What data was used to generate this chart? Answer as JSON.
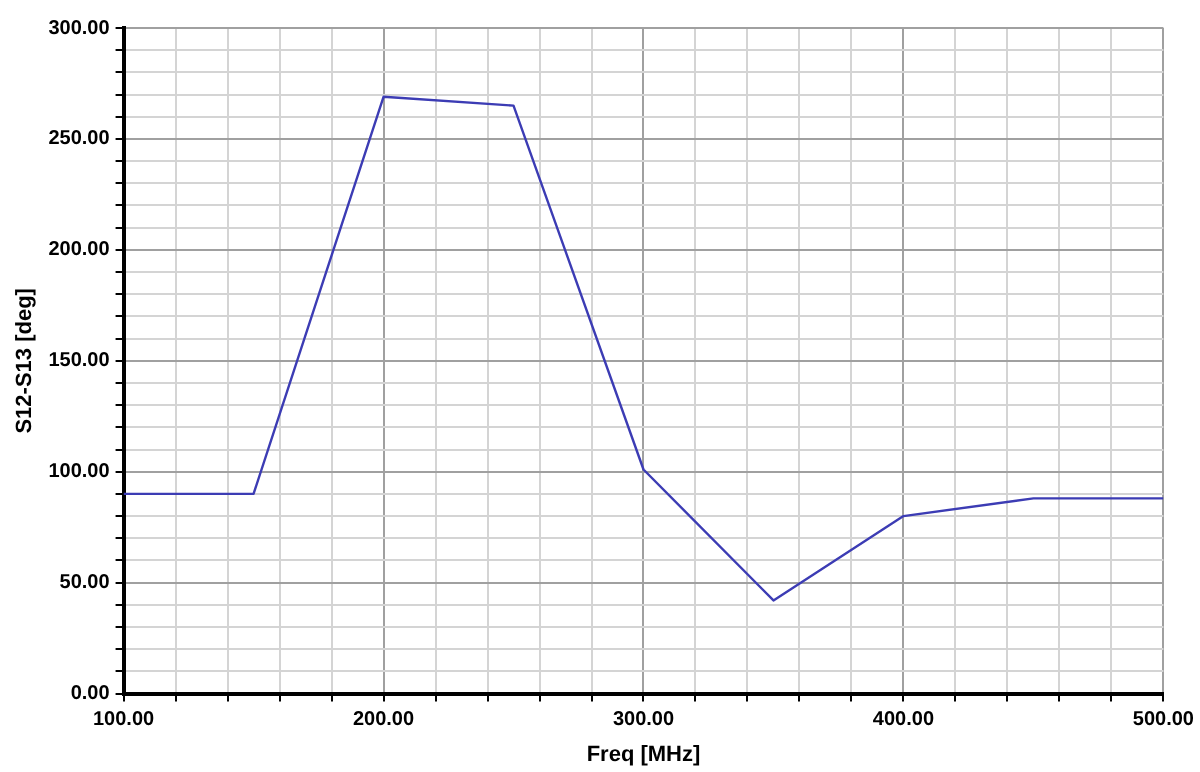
{
  "chart_data": {
    "type": "line",
    "xlabel": "Freq [MHz]",
    "ylabel": "S12-S13 [deg]",
    "series": [
      {
        "color": "#3c3cb4",
        "x": [
          100,
          150,
          200,
          250,
          300,
          350,
          400,
          450,
          500
        ],
        "values": [
          90,
          90,
          269,
          265,
          101,
          42,
          80,
          88,
          88
        ]
      }
    ],
    "xlim": [
      100,
      500
    ],
    "xticks": [
      {
        "value": 100,
        "label": "100.00"
      },
      {
        "value": 120,
        "label": null
      },
      {
        "value": 140,
        "label": null
      },
      {
        "value": 160,
        "label": null
      },
      {
        "value": 180,
        "label": null
      },
      {
        "value": 200,
        "label": "200.00"
      },
      {
        "value": 220,
        "label": null
      },
      {
        "value": 240,
        "label": null
      },
      {
        "value": 260,
        "label": null
      },
      {
        "value": 280,
        "label": null
      },
      {
        "value": 300,
        "label": "300.00"
      },
      {
        "value": 320,
        "label": null
      },
      {
        "value": 340,
        "label": null
      },
      {
        "value": 360,
        "label": null
      },
      {
        "value": 380,
        "label": null
      },
      {
        "value": 400,
        "label": "400.00"
      },
      {
        "value": 420,
        "label": null
      },
      {
        "value": 440,
        "label": null
      },
      {
        "value": 460,
        "label": null
      },
      {
        "value": 480,
        "label": null
      },
      {
        "value": 500,
        "label": "500.00"
      }
    ],
    "ylim": [
      0,
      300
    ],
    "yticks": [
      {
        "value": 0,
        "label": "0.00"
      },
      {
        "value": 10,
        "label": null
      },
      {
        "value": 20,
        "label": null
      },
      {
        "value": 30,
        "label": null
      },
      {
        "value": 40,
        "label": null
      },
      {
        "value": 50,
        "label": "50.00"
      },
      {
        "value": 60,
        "label": null
      },
      {
        "value": 70,
        "label": null
      },
      {
        "value": 80,
        "label": null
      },
      {
        "value": 90,
        "label": null
      },
      {
        "value": 100,
        "label": "100.00"
      },
      {
        "value": 110,
        "label": null
      },
      {
        "value": 120,
        "label": null
      },
      {
        "value": 130,
        "label": null
      },
      {
        "value": 140,
        "label": null
      },
      {
        "value": 150,
        "label": "150.00"
      },
      {
        "value": 160,
        "label": null
      },
      {
        "value": 170,
        "label": null
      },
      {
        "value": 180,
        "label": null
      },
      {
        "value": 190,
        "label": null
      },
      {
        "value": 200,
        "label": "200.00"
      },
      {
        "value": 210,
        "label": null
      },
      {
        "value": 220,
        "label": null
      },
      {
        "value": 230,
        "label": null
      },
      {
        "value": 240,
        "label": null
      },
      {
        "value": 250,
        "label": "250.00"
      },
      {
        "value": 260,
        "label": null
      },
      {
        "value": 270,
        "label": null
      },
      {
        "value": 280,
        "label": null
      },
      {
        "value": 290,
        "label": null
      },
      {
        "value": 300,
        "label": "300.00"
      }
    ],
    "grid": true,
    "marker": "none",
    "line_style": "solid",
    "legend": false
  }
}
